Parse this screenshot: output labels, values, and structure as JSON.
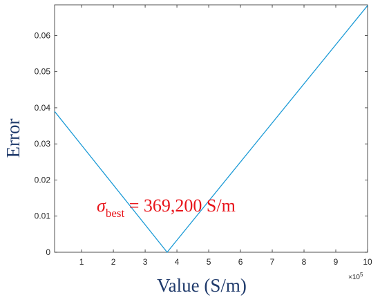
{
  "chart_data": {
    "type": "line",
    "title": "",
    "xlabel": "Value (S/m)",
    "ylabel": "Error",
    "xlim": [
      0.15,
      10
    ],
    "ylim": [
      0,
      0.0685
    ],
    "x_scale_multiplier": "×10",
    "x_scale_exponent": "5",
    "x_ticks": [
      1,
      2,
      3,
      4,
      5,
      6,
      7,
      8,
      9,
      10
    ],
    "y_ticks": [
      0,
      0.01,
      0.02,
      0.03,
      0.04,
      0.05,
      0.06
    ],
    "y_tick_labels": [
      "0",
      "0.01",
      "0.02",
      "0.03",
      "0.04",
      "0.05",
      "0.06"
    ],
    "grid": false,
    "series": [
      {
        "color": "#1a9ad6",
        "x": [
          0.15,
          3.692,
          10
        ],
        "y": [
          0.039,
          0.0,
          0.0683
        ]
      }
    ],
    "annotation": {
      "symbol": "σ",
      "subscript": "best",
      "text": " = 369,200 S/m",
      "color": "#e8141a"
    }
  }
}
